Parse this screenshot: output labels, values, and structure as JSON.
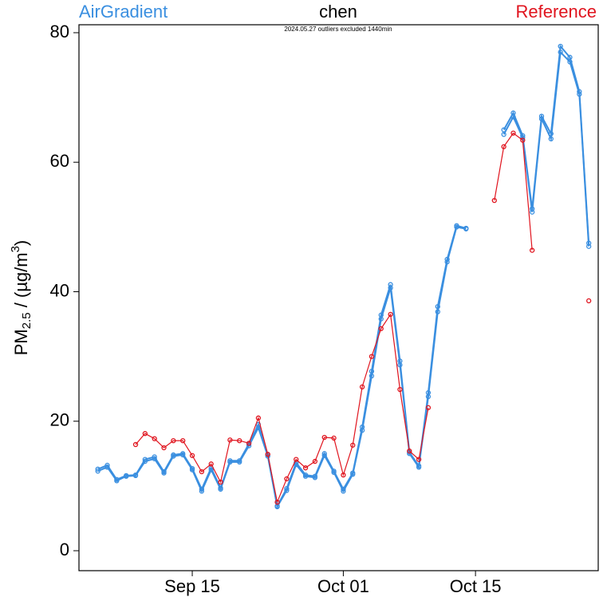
{
  "chart_data": {
    "type": "line",
    "title": "chen",
    "subtitle": "2024.05.27 outliers excluded 1440min",
    "ylabel_parts": [
      "PM",
      "2.5",
      " / (µg/m",
      "3",
      ")"
    ],
    "x": [
      "09-05",
      "09-06",
      "09-07",
      "09-08",
      "09-09",
      "09-10",
      "09-11",
      "09-12",
      "09-13",
      "09-14",
      "09-15",
      "09-16",
      "09-17",
      "09-18",
      "09-19",
      "09-20",
      "09-21",
      "09-22",
      "09-23",
      "09-24",
      "09-25",
      "09-26",
      "09-27",
      "09-28",
      "09-29",
      "09-30",
      "10-01",
      "10-02",
      "10-03",
      "10-04",
      "10-05",
      "10-06",
      "10-07",
      "10-08",
      "10-09",
      "10-10",
      "10-11",
      "10-12",
      "10-13",
      "10-14",
      "10-15",
      "10-16",
      "10-17",
      "10-18",
      "10-19",
      "10-20",
      "10-21",
      "10-22",
      "10-23",
      "10-24",
      "10-25",
      "10-26",
      "10-27"
    ],
    "series": [
      {
        "name": "AirGradient",
        "color": "#3a8fe0",
        "values": [
          12.6,
          13.2,
          11.0,
          11.6,
          11.7,
          14.1,
          14.5,
          12.2,
          14.8,
          15.0,
          12.7,
          9.5,
          12.8,
          9.7,
          13.9,
          13.9,
          16.5,
          19.5,
          14.8,
          6.9,
          9.6,
          13.6,
          11.7,
          11.5,
          15.0,
          12.3,
          9.5,
          12.0,
          19.1,
          27.7,
          36.4,
          41.1,
          29.3,
          15.2,
          13.1,
          24.4,
          37.7,
          45.0,
          50.2,
          49.8,
          null,
          null,
          null,
          65.0,
          67.6,
          64.1,
          52.8,
          67.1,
          64.4,
          77.9,
          76.2,
          70.9,
          47.5
        ]
      },
      {
        "color": "#3a8fe0",
        "values": [
          12.3,
          12.9,
          10.8,
          11.5,
          11.6,
          13.8,
          14.2,
          12.0,
          14.6,
          14.8,
          12.5,
          9.2,
          12.5,
          9.5,
          13.7,
          13.7,
          16.2,
          19.0,
          14.6,
          6.8,
          9.3,
          13.3,
          11.5,
          11.3,
          14.7,
          12.1,
          9.2,
          11.8,
          18.6,
          27.0,
          35.8,
          40.6,
          28.7,
          15.0,
          12.9,
          23.8,
          36.9,
          44.6,
          50.0,
          49.7,
          null,
          null,
          null,
          64.3,
          67.0,
          63.8,
          52.3,
          66.7,
          63.6,
          77.0,
          75.5,
          70.5,
          47.0
        ]
      },
      {
        "name": "Reference",
        "color": "#e0141e",
        "values": [
          null,
          null,
          null,
          null,
          16.4,
          18.1,
          17.3,
          15.9,
          17.0,
          17.0,
          14.7,
          12.2,
          13.4,
          10.6,
          17.1,
          17.0,
          16.6,
          20.5,
          14.9,
          7.5,
          11.1,
          14.1,
          12.8,
          13.8,
          17.5,
          17.4,
          11.7,
          16.3,
          25.3,
          30.0,
          34.3,
          36.5,
          24.9,
          15.4,
          14.1,
          22.1,
          null,
          null,
          null,
          null,
          null,
          null,
          54.1,
          62.4,
          64.5,
          63.4,
          46.4,
          null,
          null,
          null,
          null,
          null,
          38.6
        ]
      }
    ],
    "xlim": [
      "09-03",
      "10-28"
    ],
    "xticks": [
      {
        "value": "09-15",
        "label": "Sep 15"
      },
      {
        "value": "10-01",
        "label": "Oct 01"
      },
      {
        "value": "10-15",
        "label": "Oct 15"
      }
    ],
    "ylim": [
      -3.08,
      81.23
    ],
    "yticks": [
      0,
      20,
      40,
      60,
      80
    ]
  }
}
